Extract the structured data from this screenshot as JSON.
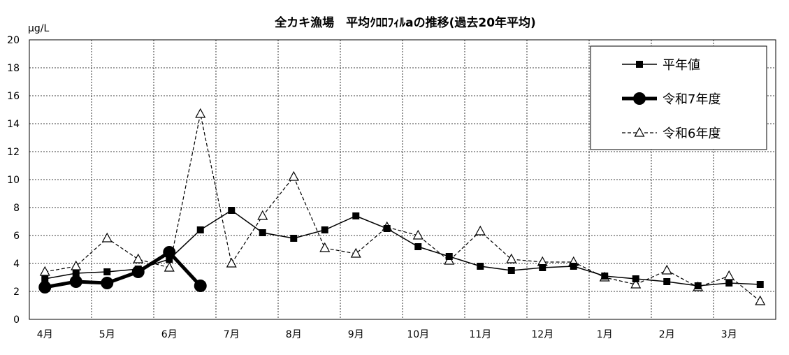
{
  "chart_data": {
    "type": "line",
    "title": "全カキ漁場　平均ｸﾛﾛﾌｨﾙaの推移(過去20年平均)",
    "ylabel": "μg/L",
    "xlabel": "",
    "ylim": [
      0,
      20
    ],
    "yticks": [
      0,
      2,
      4,
      6,
      8,
      10,
      12,
      14,
      16,
      18,
      20
    ],
    "xlim": [
      0,
      12
    ],
    "month_labels": [
      "4月",
      "5月",
      "6月",
      "7月",
      "8月",
      "9月",
      "10月",
      "11月",
      "12月",
      "1月",
      "2月",
      "3月"
    ],
    "grid": true,
    "legend_position": "top-right",
    "series": [
      {
        "name": "平年値",
        "style": "solid-square",
        "color": "#000000",
        "x": [
          0.25,
          0.75,
          1.25,
          1.75,
          2.25,
          2.75,
          3.25,
          3.75,
          4.25,
          4.75,
          5.25,
          5.75,
          6.25,
          6.75,
          7.25,
          7.75,
          8.25,
          8.75,
          9.25,
          9.75,
          10.25,
          10.75,
          11.25,
          11.75
        ],
        "values": [
          2.9,
          3.3,
          3.4,
          3.6,
          4.3,
          6.4,
          7.8,
          6.2,
          5.8,
          6.4,
          7.4,
          6.5,
          5.2,
          4.5,
          3.8,
          3.5,
          3.7,
          3.8,
          3.1,
          2.9,
          2.7,
          2.4,
          2.6,
          2.5
        ]
      },
      {
        "name": "令和7年度",
        "style": "bold-circle",
        "color": "#000000",
        "x": [
          0.25,
          0.75,
          1.25,
          1.75,
          2.25,
          2.75
        ],
        "values": [
          2.3,
          2.7,
          2.6,
          3.4,
          4.8,
          2.4
        ]
      },
      {
        "name": "令和6年度",
        "style": "dashed-triangle",
        "color": "#000000",
        "x": [
          0.25,
          0.75,
          1.25,
          1.75,
          2.25,
          2.75,
          3.25,
          3.75,
          4.25,
          4.75,
          5.25,
          5.75,
          6.25,
          6.75,
          7.25,
          7.75,
          8.25,
          8.75,
          9.25,
          9.75,
          10.25,
          10.75,
          11.25,
          11.75
        ],
        "values": [
          3.4,
          3.8,
          5.8,
          4.3,
          3.7,
          14.7,
          4.0,
          7.4,
          10.2,
          5.1,
          4.7,
          6.6,
          6.0,
          4.2,
          6.3,
          4.3,
          4.1,
          4.1,
          3.0,
          2.5,
          3.5,
          2.3,
          3.1,
          1.3
        ]
      }
    ]
  }
}
